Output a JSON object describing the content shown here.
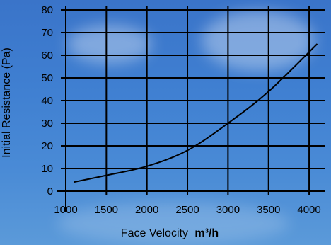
{
  "chart_data": {
    "type": "line",
    "title": "",
    "xlabel": "Face Velocity",
    "xlabel_unit": "m³/h",
    "ylabel": "Initial Resistance (Pa)",
    "x_ticks": [
      "1000",
      "1500",
      "2000",
      "2500",
      "3000",
      "3500",
      "4000"
    ],
    "y_ticks": [
      "0",
      "10",
      "20",
      "30",
      "40",
      "50",
      "60",
      "70",
      "80"
    ],
    "xlim": [
      1000,
      4200
    ],
    "ylim": [
      0,
      80
    ],
    "grid": true,
    "series": [
      {
        "x": [
          1100,
          1500,
          2000,
          2500,
          3000,
          3500,
          4100
        ],
        "y": [
          4,
          7,
          11,
          18,
          30,
          44,
          65
        ]
      }
    ],
    "colors": {
      "line": "#000000",
      "grid": "#000000",
      "text": "#000000"
    }
  }
}
